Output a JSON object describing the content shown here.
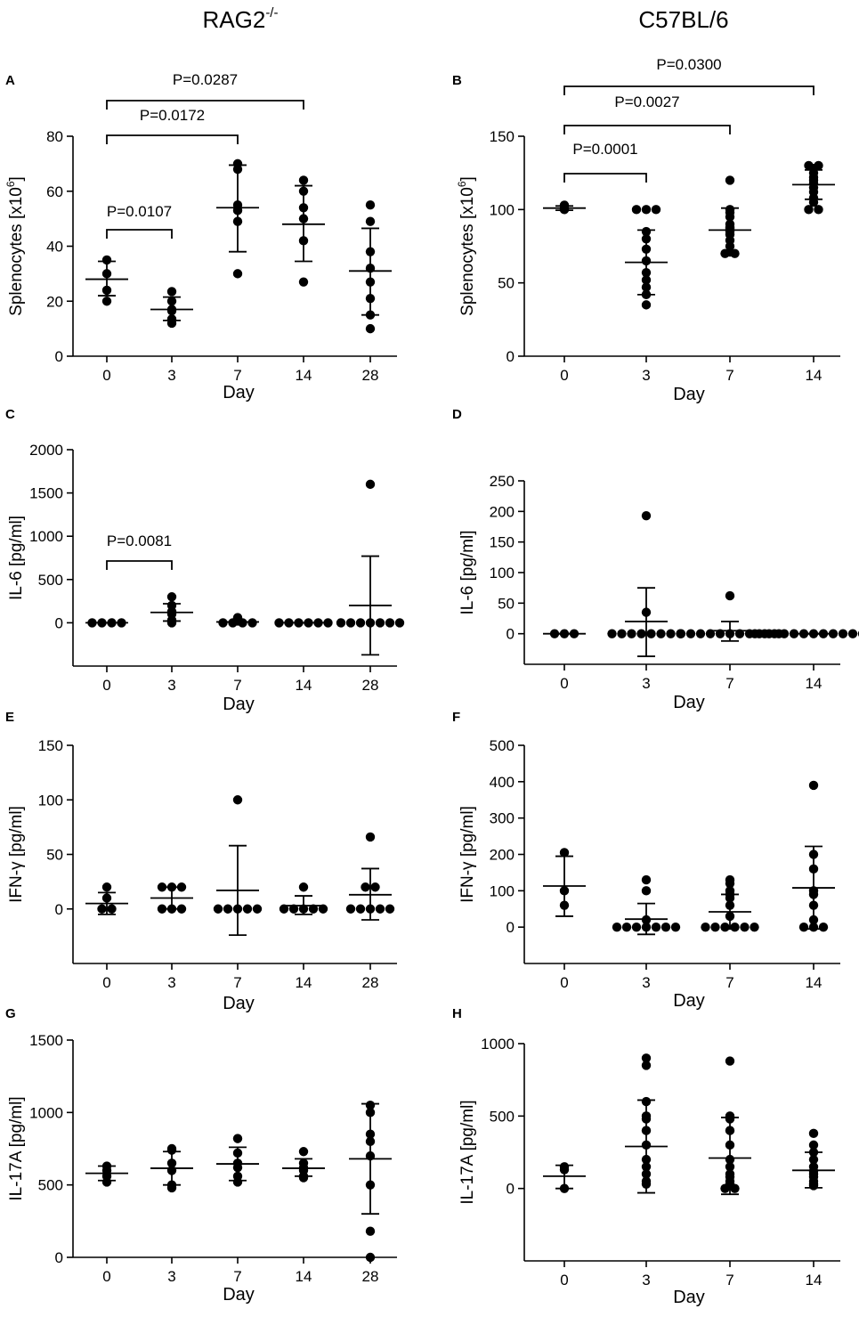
{
  "columns": [
    {
      "title_main": "RAG2",
      "title_sup": "-/-"
    },
    {
      "title_main": "C57BL/6",
      "title_sup": ""
    }
  ],
  "chart_data": [
    {
      "panel": "A",
      "type": "scatter",
      "ylabel": "Splenocytes [x10",
      "ylabel_sup": "6",
      "ylabel_end": "]",
      "xlabel": "Day",
      "categories": [
        "0",
        "3",
        "7",
        "14",
        "28"
      ],
      "yticks": [
        "0",
        "20",
        "40",
        "60",
        "80"
      ],
      "ylim": [
        0,
        80
      ],
      "groups": [
        {
          "cat": "0",
          "points": [
            35,
            30,
            24,
            20
          ],
          "mean": 28,
          "sd_low": 22,
          "sd_high": 34.5
        },
        {
          "cat": "3",
          "points": [
            23.5,
            20,
            17,
            16.5,
            13.5,
            12
          ],
          "mean": 17,
          "sd_low": 13,
          "sd_high": 21.5
        },
        {
          "cat": "7",
          "points": [
            70,
            68,
            55,
            53,
            49,
            30
          ],
          "mean": 54,
          "sd_low": 38,
          "sd_high": 69.5
        },
        {
          "cat": "14",
          "points": [
            64,
            60,
            54,
            50,
            42,
            27
          ],
          "mean": 48,
          "sd_low": 34.5,
          "sd_high": 62
        },
        {
          "cat": "28",
          "points": [
            55,
            49,
            38,
            32,
            27,
            21,
            15,
            10
          ],
          "mean": 31,
          "sd_low": 15,
          "sd_high": 46.5
        }
      ],
      "comparisons": [
        {
          "from": "0",
          "to": "14",
          "label": "P=0.0287"
        },
        {
          "from": "0",
          "to": "7",
          "label": "P=0.0172"
        },
        {
          "from": "0",
          "to": "3",
          "label": "P=0.0107"
        }
      ]
    },
    {
      "panel": "B",
      "type": "scatter",
      "ylabel": "Splenocytes [x10",
      "ylabel_sup": "6",
      "ylabel_end": "]",
      "xlabel": "Day",
      "categories": [
        "0",
        "3",
        "7",
        "14"
      ],
      "yticks": [
        "0",
        "50",
        "100",
        "150"
      ],
      "ylim": [
        0,
        150
      ],
      "groups": [
        {
          "cat": "0",
          "points": [
            103,
            101,
            100
          ],
          "mean": 101,
          "sd_low": 99.5,
          "sd_high": 102.5
        },
        {
          "cat": "3",
          "points": [
            100,
            100,
            100,
            85,
            80,
            73,
            65,
            57,
            52,
            47,
            42,
            35
          ],
          "mean": 64,
          "sd_low": 42,
          "sd_high": 86
        },
        {
          "cat": "7",
          "points": [
            120,
            100,
            98,
            95,
            90,
            88,
            87,
            85,
            83,
            79,
            75,
            71,
            70,
            70
          ],
          "mean": 86,
          "sd_low": 71,
          "sd_high": 101
        },
        {
          "cat": "14",
          "points": [
            130,
            130,
            128,
            125,
            122,
            120,
            118,
            115,
            112,
            108,
            105,
            100,
            100
          ],
          "mean": 117,
          "sd_low": 107,
          "sd_high": 127
        }
      ],
      "comparisons": [
        {
          "from": "0",
          "to": "14",
          "label": "P=0.0300"
        },
        {
          "from": "0",
          "to": "7",
          "label": "P=0.0027"
        },
        {
          "from": "0",
          "to": "3",
          "label": "P=0.0001"
        }
      ]
    },
    {
      "panel": "C",
      "type": "scatter",
      "ylabel": "IL-6 [pg/ml]",
      "ylabel_sup": "",
      "ylabel_end": "",
      "xlabel": "Day",
      "categories": [
        "0",
        "3",
        "7",
        "14",
        "28"
      ],
      "yticks": [
        "0",
        "500",
        "1000",
        "1500",
        "2000"
      ],
      "ylim": [
        -500,
        2000
      ],
      "groups": [
        {
          "cat": "0",
          "points": [
            0,
            0,
            0,
            0
          ],
          "mean": 0,
          "sd_low": 0,
          "sd_high": 0
        },
        {
          "cat": "3",
          "points": [
            300,
            200,
            130,
            100,
            30,
            0
          ],
          "mean": 120,
          "sd_low": 20,
          "sd_high": 220
        },
        {
          "cat": "7",
          "points": [
            60,
            20,
            0,
            0,
            0,
            0
          ],
          "mean": 10,
          "sd_low": 0,
          "sd_high": 10
        },
        {
          "cat": "14",
          "points": [
            0,
            0,
            0,
            0,
            0,
            0
          ],
          "mean": 0,
          "sd_low": 0,
          "sd_high": 0
        },
        {
          "cat": "28",
          "points": [
            1600,
            0,
            0,
            0,
            0,
            0,
            0,
            0
          ],
          "mean": 200,
          "sd_low": -370,
          "sd_high": 770
        }
      ],
      "comparisons": [
        {
          "from": "0",
          "to": "3",
          "label": "P=0.0081"
        }
      ]
    },
    {
      "panel": "D",
      "type": "scatter",
      "ylabel": "IL-6 [pg/ml]",
      "ylabel_sup": "",
      "ylabel_end": "",
      "xlabel": "Day",
      "categories": [
        "0",
        "3",
        "7",
        "14"
      ],
      "yticks": [
        "0",
        "50",
        "100",
        "150",
        "200",
        "250"
      ],
      "ylim": [
        -50,
        250
      ],
      "groups": [
        {
          "cat": "0",
          "points": [
            0,
            0,
            0
          ],
          "mean": 0,
          "sd_low": 0,
          "sd_high": 0
        },
        {
          "cat": "3",
          "points": [
            193,
            35,
            0,
            0,
            0,
            0,
            0,
            0,
            0,
            0
          ],
          "mean": 20,
          "sd_low": -37,
          "sd_high": 75
        },
        {
          "cat": "7",
          "points": [
            62,
            0,
            0,
            0,
            0,
            0,
            0,
            0,
            0,
            0,
            0,
            0
          ],
          "mean": 5,
          "sd_low": -12,
          "sd_high": 20
        },
        {
          "cat": "14",
          "points": [
            0,
            0,
            0,
            0,
            0,
            0,
            0,
            0,
            0,
            0,
            0,
            0,
            0
          ],
          "mean": 0,
          "sd_low": 0,
          "sd_high": 0
        }
      ],
      "comparisons": []
    },
    {
      "panel": "E",
      "type": "scatter",
      "ylabel": "IFN-γ [pg/ml]",
      "ylabel_sup": "",
      "ylabel_end": "",
      "xlabel": "Day",
      "categories": [
        "0",
        "3",
        "7",
        "14",
        "28"
      ],
      "yticks": [
        "0",
        "50",
        "100",
        "150"
      ],
      "ylim": [
        -50,
        150
      ],
      "groups": [
        {
          "cat": "0",
          "points": [
            20,
            10,
            0,
            0
          ],
          "mean": 5,
          "sd_low": -5,
          "sd_high": 15
        },
        {
          "cat": "3",
          "points": [
            20,
            20,
            20,
            0,
            0,
            0
          ],
          "mean": 10,
          "sd_low": 0,
          "sd_high": 20
        },
        {
          "cat": "7",
          "points": [
            100,
            0,
            0,
            0,
            0,
            0
          ],
          "mean": 17,
          "sd_low": -24,
          "sd_high": 58
        },
        {
          "cat": "14",
          "points": [
            20,
            0,
            0,
            0,
            0,
            0
          ],
          "mean": 3,
          "sd_low": -5,
          "sd_high": 12
        },
        {
          "cat": "28",
          "points": [
            66,
            20,
            20,
            0,
            0,
            0,
            0,
            0
          ],
          "mean": 13,
          "sd_low": -10,
          "sd_high": 37
        }
      ],
      "comparisons": []
    },
    {
      "panel": "F",
      "type": "scatter",
      "ylabel": "IFN-γ [pg/ml]",
      "ylabel_sup": "",
      "ylabel_end": "",
      "xlabel": "Day",
      "categories": [
        "0",
        "3",
        "7",
        "14"
      ],
      "yticks": [
        "0",
        "100",
        "200",
        "300",
        "400",
        "500"
      ],
      "ylim": [
        -100,
        500
      ],
      "groups": [
        {
          "cat": "0",
          "points": [
            205,
            100,
            60
          ],
          "mean": 113,
          "sd_low": 30,
          "sd_high": 195
        },
        {
          "cat": "3",
          "points": [
            130,
            100,
            20,
            0,
            0,
            0,
            0,
            0,
            0,
            0
          ],
          "mean": 22,
          "sd_low": -20,
          "sd_high": 65
        },
        {
          "cat": "7",
          "points": [
            130,
            120,
            100,
            90,
            80,
            60,
            30,
            0,
            0,
            0,
            0,
            0,
            0
          ],
          "mean": 42,
          "sd_low": -5,
          "sd_high": 90
        },
        {
          "cat": "14",
          "points": [
            390,
            200,
            160,
            100,
            90,
            60,
            20,
            0,
            0,
            0
          ],
          "mean": 108,
          "sd_low": -5,
          "sd_high": 222
        }
      ],
      "comparisons": []
    },
    {
      "panel": "G",
      "type": "scatter",
      "ylabel": "IL-17A [pg/ml]",
      "ylabel_sup": "",
      "ylabel_end": "",
      "xlabel": "Day",
      "categories": [
        "0",
        "3",
        "7",
        "14",
        "28"
      ],
      "yticks": [
        "0",
        "500",
        "1000",
        "1500"
      ],
      "ylim": [
        0,
        1500
      ],
      "groups": [
        {
          "cat": "0",
          "points": [
            630,
            600,
            560,
            520
          ],
          "mean": 580,
          "sd_low": 530,
          "sd_high": 630
        },
        {
          "cat": "3",
          "points": [
            750,
            740,
            650,
            600,
            500,
            480
          ],
          "mean": 615,
          "sd_low": 500,
          "sd_high": 730
        },
        {
          "cat": "7",
          "points": [
            820,
            720,
            650,
            620,
            560,
            520
          ],
          "mean": 645,
          "sd_low": 530,
          "sd_high": 760
        },
        {
          "cat": "14",
          "points": [
            730,
            650,
            620,
            600,
            560,
            550
          ],
          "mean": 615,
          "sd_low": 560,
          "sd_high": 680
        },
        {
          "cat": "28",
          "points": [
            1050,
            1000,
            850,
            800,
            700,
            500,
            180,
            0
          ],
          "mean": 680,
          "sd_low": 300,
          "sd_high": 1060
        }
      ],
      "comparisons": []
    },
    {
      "panel": "H",
      "type": "scatter",
      "ylabel": "IL-17A [pg/ml]",
      "ylabel_sup": "",
      "ylabel_end": "",
      "xlabel": "Day",
      "categories": [
        "0",
        "3",
        "7",
        "14"
      ],
      "yticks": [
        "0",
        "500",
        "1000"
      ],
      "ylim": [
        -500,
        1000
      ],
      "groups": [
        {
          "cat": "0",
          "points": [
            150,
            130,
            0
          ],
          "mean": 85,
          "sd_low": 0,
          "sd_high": 160
        },
        {
          "cat": "3",
          "points": [
            900,
            850,
            600,
            500,
            480,
            400,
            300,
            200,
            150,
            100,
            50,
            30
          ],
          "mean": 290,
          "sd_low": -30,
          "sd_high": 610
        },
        {
          "cat": "7",
          "points": [
            880,
            500,
            480,
            400,
            300,
            200,
            150,
            100,
            80,
            50,
            30,
            20,
            0,
            0
          ],
          "mean": 210,
          "sd_low": -40,
          "sd_high": 490
        },
        {
          "cat": "14",
          "points": [
            380,
            300,
            250,
            200,
            150,
            120,
            100,
            80,
            50,
            30,
            20
          ],
          "mean": 125,
          "sd_low": 5,
          "sd_high": 250
        }
      ],
      "comparisons": []
    }
  ]
}
